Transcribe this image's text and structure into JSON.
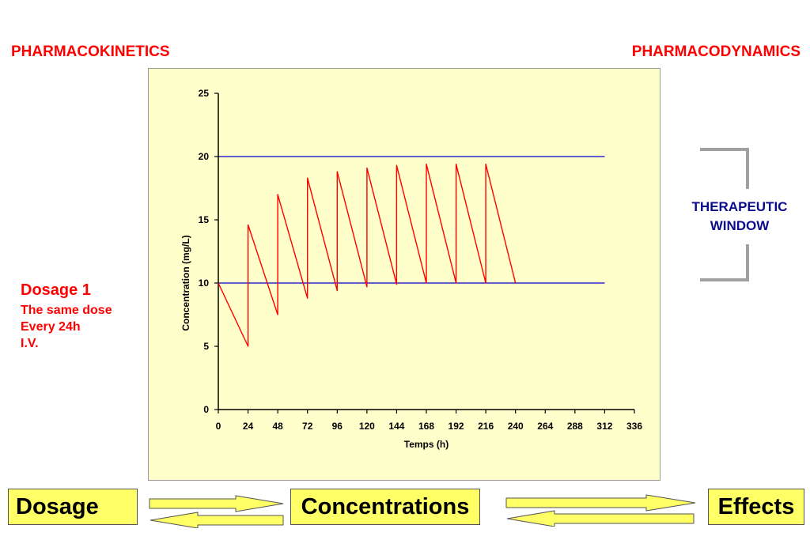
{
  "headers": {
    "left": "PHARMACOKINETICS",
    "right": "PHARMACODYNAMICS"
  },
  "dosage_note": {
    "title": "Dosage 1",
    "lines": [
      "The same dose",
      "Every 24h",
      "I.V."
    ]
  },
  "therapeutic_window": {
    "lines": [
      "THERAPEUTIC",
      "WINDOW"
    ]
  },
  "flow": {
    "dosage": "Dosage",
    "concentrations": "Concentrations",
    "effects": "Effects"
  },
  "colors": {
    "curve": "#ff0000",
    "window_lines": "#0000cc",
    "plot_bg": "#ffffcc",
    "box_bg": "#ffff66",
    "bracket": "#a0a0a0"
  },
  "chart_data": {
    "type": "line",
    "xlabel": "Temps (h)",
    "ylabel": "Concentration (mg/L)",
    "xlim": [
      0,
      336
    ],
    "ylim": [
      0,
      25
    ],
    "xticks": [
      0,
      24,
      48,
      72,
      96,
      120,
      144,
      168,
      192,
      216,
      240,
      264,
      288,
      312,
      336
    ],
    "yticks": [
      0,
      5,
      10,
      15,
      20,
      25
    ],
    "grid": false,
    "reference_lines": [
      10,
      20
    ],
    "series": [
      {
        "points": [
          [
            0,
            10
          ],
          [
            24,
            5
          ],
          [
            24,
            14.6
          ],
          [
            48,
            7.5
          ],
          [
            48,
            17
          ],
          [
            72,
            8.8
          ],
          [
            72,
            18.3
          ],
          [
            96,
            9.4
          ],
          [
            96,
            18.8
          ],
          [
            120,
            9.7
          ],
          [
            120,
            19.1
          ],
          [
            144,
            9.9
          ],
          [
            144,
            19.3
          ],
          [
            168,
            10
          ],
          [
            168,
            19.4
          ],
          [
            192,
            10
          ],
          [
            192,
            19.4
          ],
          [
            216,
            10
          ],
          [
            216,
            19.4
          ],
          [
            240,
            10
          ]
        ]
      }
    ]
  }
}
